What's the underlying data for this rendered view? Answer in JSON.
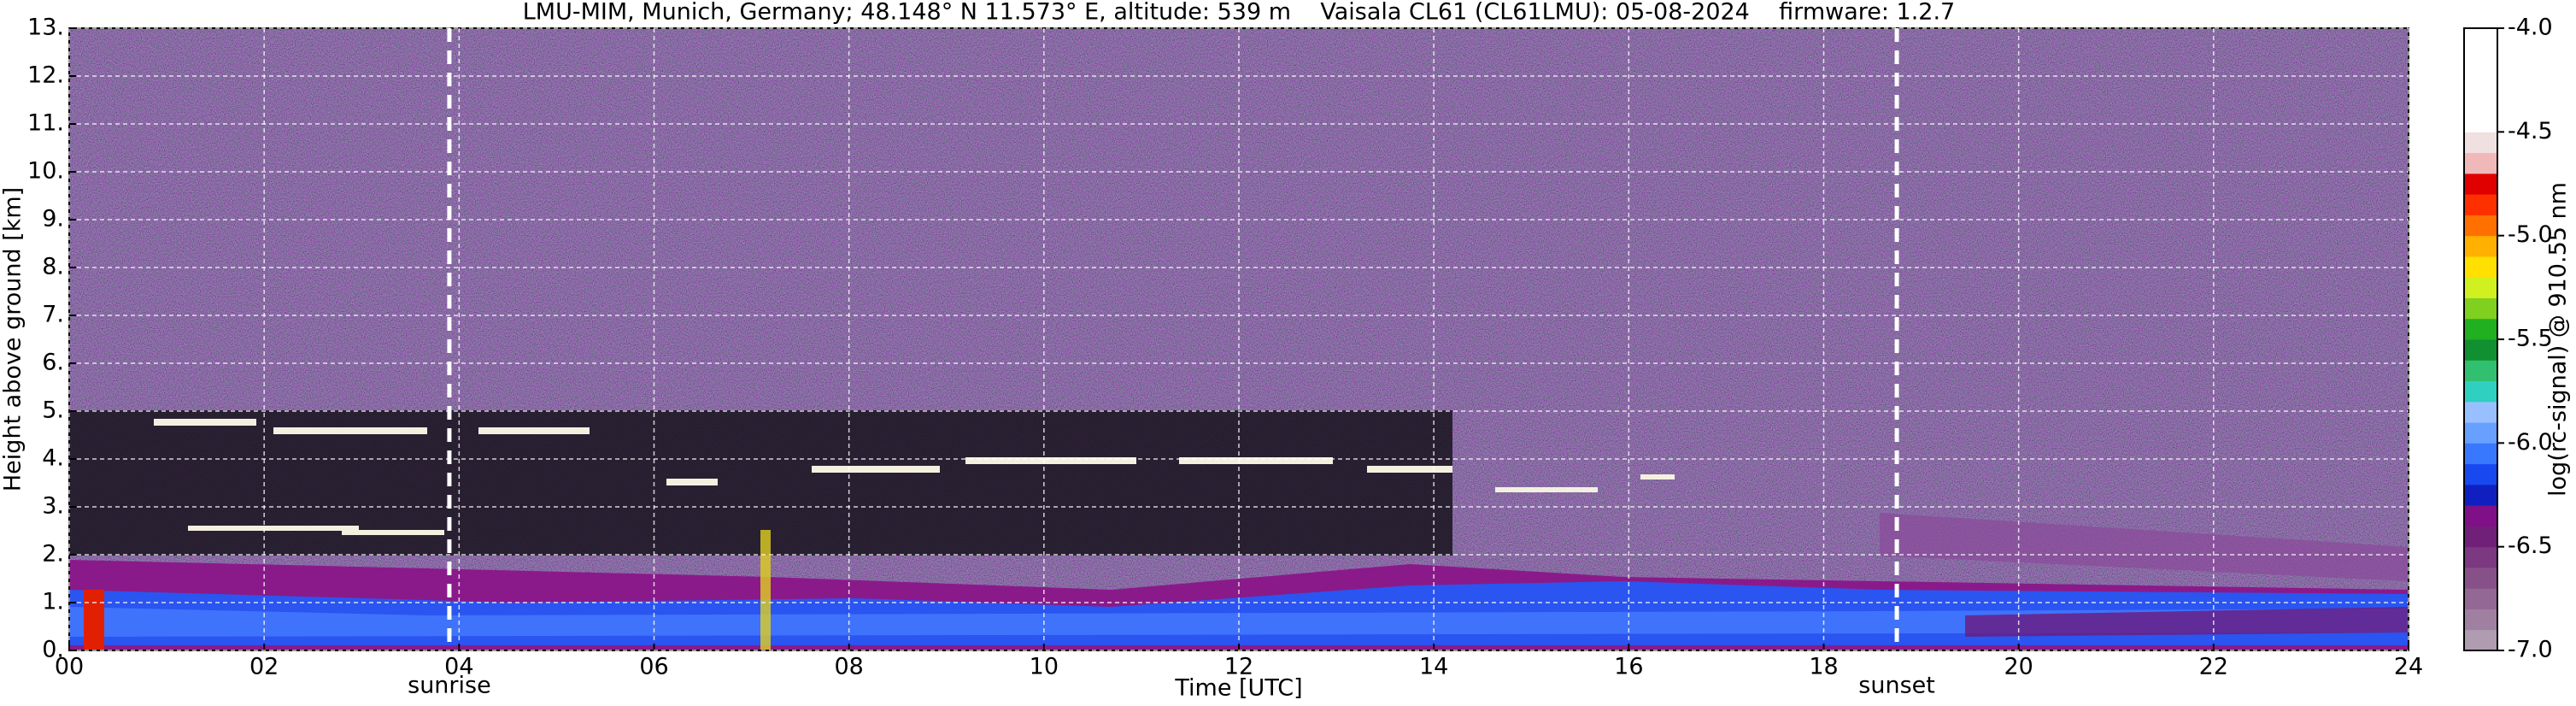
{
  "chart_data": {
    "type": "heatmap",
    "title": "LMU-MIM, Munich, Germany; 48.148° N 11.573° E, altitude: 539 m    Vaisala CL61 (CL61LMU): 05-08-2024    firmware: 1.2.7",
    "x_label": "Time [UTC]",
    "y_label": "Height above ground [km]",
    "xlim": [
      0,
      24
    ],
    "xticks": [
      {
        "value": 0,
        "label": "00"
      },
      {
        "value": 2,
        "label": "02"
      },
      {
        "value": 4,
        "label": "04"
      },
      {
        "value": 6,
        "label": "06"
      },
      {
        "value": 8,
        "label": "08"
      },
      {
        "value": 10,
        "label": "10"
      },
      {
        "value": 12,
        "label": "12"
      },
      {
        "value": 14,
        "label": "14"
      },
      {
        "value": 16,
        "label": "16"
      },
      {
        "value": 18,
        "label": "18"
      },
      {
        "value": 20,
        "label": "20"
      },
      {
        "value": 22,
        "label": "22"
      },
      {
        "value": 24,
        "label": "24"
      }
    ],
    "ylim": [
      0,
      13
    ],
    "yticks": [
      {
        "value": 0,
        "label": "0."
      },
      {
        "value": 1,
        "label": "1."
      },
      {
        "value": 2,
        "label": "2."
      },
      {
        "value": 3,
        "label": "3."
      },
      {
        "value": 4,
        "label": "4."
      },
      {
        "value": 5,
        "label": "5."
      },
      {
        "value": 6,
        "label": "6."
      },
      {
        "value": 7,
        "label": "7."
      },
      {
        "value": 8,
        "label": "8."
      },
      {
        "value": 9,
        "label": "9."
      },
      {
        "value": 10,
        "label": "10."
      },
      {
        "value": 11,
        "label": "11."
      },
      {
        "value": 12,
        "label": "12."
      },
      {
        "value": 13,
        "label": "13."
      }
    ],
    "grid": true,
    "annotations": [
      {
        "text": "sunrise",
        "x": 3.9
      },
      {
        "text": "sunset",
        "x": 18.75
      }
    ],
    "colorbar": {
      "label": "log(rc-signal) @ 910.55 nm",
      "lim": [
        -7.0,
        -4.0
      ],
      "ticks": [
        {
          "value": -7.0,
          "label": "-7.0"
        },
        {
          "value": -6.5,
          "label": "-6.5"
        },
        {
          "value": -6.0,
          "label": "-6.0"
        },
        {
          "value": -5.5,
          "label": "-5.5"
        },
        {
          "value": -5.0,
          "label": "-5.0"
        },
        {
          "value": -4.5,
          "label": "-4.5"
        },
        {
          "value": -4.0,
          "label": "-4.0"
        }
      ],
      "colors": [
        "#b09cb0",
        "#a080a0",
        "#946894",
        "#885088",
        "#7c3880",
        "#702078",
        "#801088",
        "#1020c0",
        "#1848f0",
        "#3878ff",
        "#68a0ff",
        "#98c0ff",
        "#30d0c0",
        "#30c070",
        "#109030",
        "#20b020",
        "#80d020",
        "#d0f020",
        "#ffe000",
        "#ffb000",
        "#ff7000",
        "#ff3000",
        "#e00000",
        "#f0b8b8",
        "#f0e0e0",
        "#ffffff",
        "#ffffff",
        "#ffffff",
        "#ffffff",
        "#ffffff"
      ]
    }
  }
}
